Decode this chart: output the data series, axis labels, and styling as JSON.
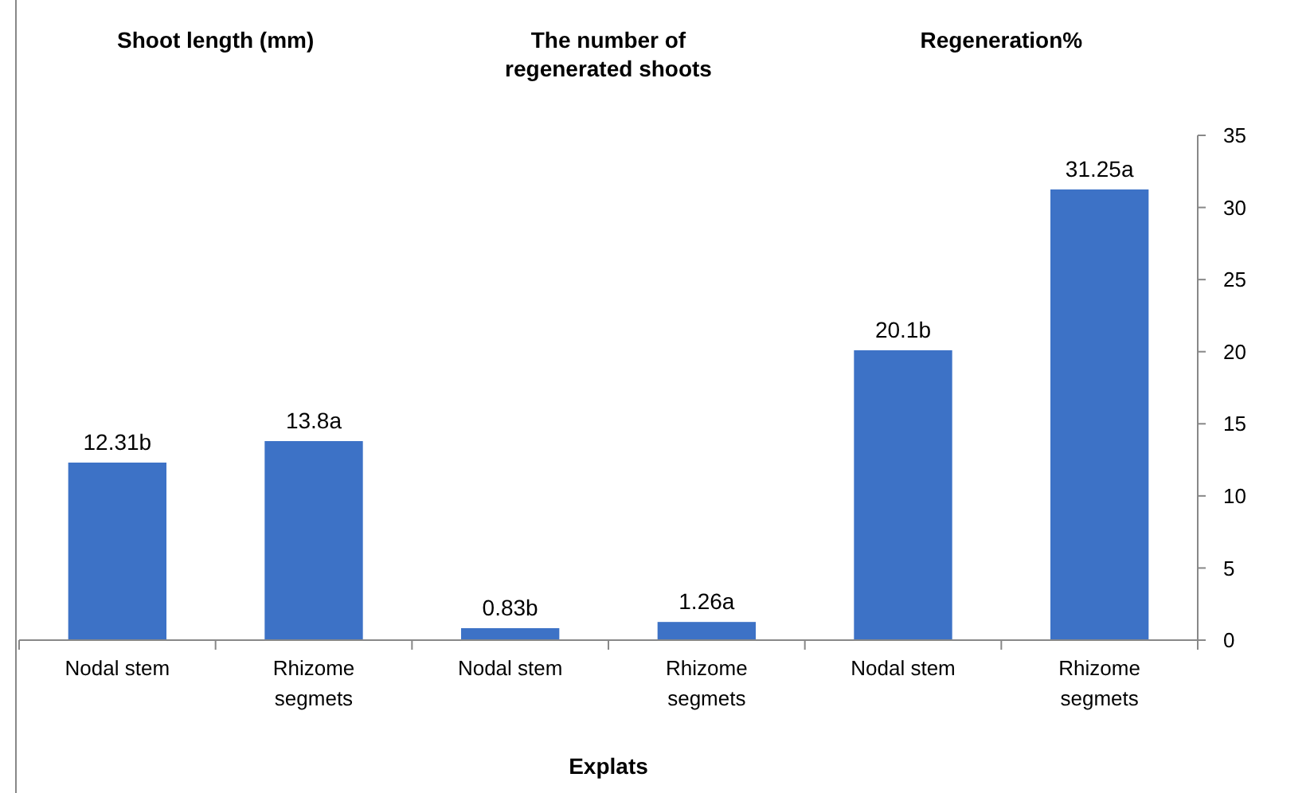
{
  "chart_data": {
    "type": "bar",
    "xlabel": "Explats",
    "categories": [
      "Nodal stem",
      "Rhizome segmets",
      "Nodal stem",
      "Rhizome segmets",
      "Nodal stem",
      "Rhizome segmets"
    ],
    "values": [
      12.31,
      13.8,
      0.83,
      1.26,
      20.1,
      31.25
    ],
    "value_labels": [
      "12.31b",
      "13.8a",
      "0.83b",
      "1.26a",
      "20.1b",
      "31.25a"
    ],
    "color": "#3d72c6",
    "ylim": [
      0,
      35
    ],
    "yticks": [
      0,
      5,
      10,
      15,
      20,
      25,
      30,
      35
    ],
    "grid": false,
    "annotations": [
      "Shoot length (mm)",
      "The number of regenerated shoots",
      "Regeneration%"
    ]
  }
}
